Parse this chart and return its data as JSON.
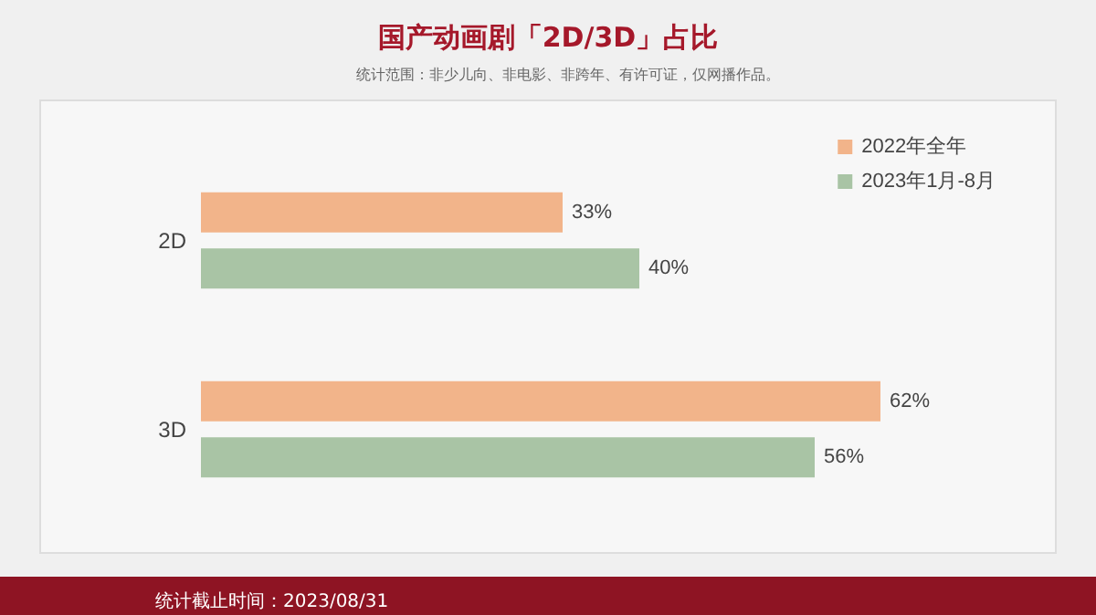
{
  "chart_data": {
    "type": "bar",
    "orientation": "horizontal",
    "title": "国产动画剧「2D/3D」占比",
    "subtitle": "统计范围：非少儿向、非电影、非跨年、有许可证，仅网播作品。",
    "categories": [
      "2D",
      "3D"
    ],
    "series": [
      {
        "name": "2022年全年",
        "color": "#f2b48a",
        "values": [
          33,
          62
        ],
        "value_labels": [
          "33%",
          "62%"
        ]
      },
      {
        "name": "2023年1月-8月",
        "color": "#a9c4a5",
        "values": [
          40,
          56
        ],
        "value_labels": [
          "40%",
          "56%"
        ]
      }
    ],
    "legend": "top right",
    "grid": false,
    "annotations": [
      "统计截止时间：2023/08/31"
    ]
  }
}
